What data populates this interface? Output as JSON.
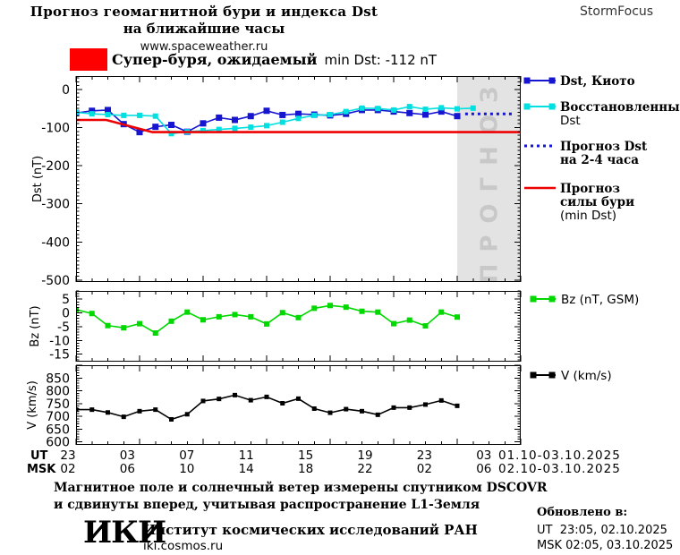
{
  "header": {
    "title_line1": "Прогноз геомагнитной бури и индекса Dst",
    "title_line2": "на ближайшие часы",
    "website": "www.spaceweather.ru",
    "brand": "StormFocus"
  },
  "alert": {
    "label_ru": "Супер-буря, ожидаемый",
    "label_value": "min Dst: -112 nT",
    "color": "#ff0000"
  },
  "xaxis": {
    "ut_label": "UT",
    "msk_label": "MSK",
    "ut_hours": [
      "23",
      "03",
      "07",
      "11",
      "15",
      "19",
      "23",
      "03"
    ],
    "msk_hours": [
      "02",
      "06",
      "10",
      "14",
      "18",
      "22",
      "02",
      "06"
    ],
    "ut_date": "01.10-03.10.2025",
    "msk_date": "02.10-03.10.2025"
  },
  "chart_data": [
    {
      "id": "dst",
      "type": "line",
      "ylabel": "Dst (nT)",
      "yticks": [
        0,
        -100,
        -200,
        -300,
        -400,
        -500
      ],
      "ylim": [
        35,
        -505
      ],
      "xlim_hours": [
        0,
        28
      ],
      "forecast_region": {
        "from_hour": 24,
        "to_hour": 28,
        "label": "ПРОГНОЗ",
        "color": "#e3e3e3",
        "label_color": "#c8c8c8"
      },
      "series": [
        {
          "id": "dst-kyoto",
          "name": "Dst, Киото",
          "color": "#1616d1",
          "marker": true,
          "marker_size": 7,
          "x_start_hour": 0,
          "x_step": 1,
          "values": [
            -62,
            -56,
            -54,
            -91,
            -112,
            -98,
            -93,
            -111,
            -89,
            -74,
            -80,
            -70,
            -56,
            -67,
            -64,
            -66,
            -68,
            -64,
            -54,
            -54,
            -58,
            -62,
            -66,
            -58,
            -70
          ]
        },
        {
          "id": "dst-restored",
          "name": "Восстановленный Dst",
          "color": "#00e0e0",
          "marker": true,
          "marker_size": 6,
          "x_start_hour": 0,
          "x_step": 1,
          "values": [
            -60,
            -64,
            -66,
            -68,
            -68,
            -70,
            -116,
            -111,
            -108,
            -105,
            -102,
            -99,
            -95,
            -86,
            -76,
            -68,
            -66,
            -58,
            -49,
            -50,
            -54,
            -45,
            -52,
            -48,
            -51,
            -49
          ]
        },
        {
          "id": "dst-forecast",
          "name": "Прогноз Dst на 2-4 часа",
          "color": "#1616d1",
          "style": "dotted",
          "points": [
            [
              24.5,
              -64
            ],
            [
              27.6,
              -64
            ]
          ]
        },
        {
          "id": "storm-min-forecast",
          "name": "Прогноз силы бури (min Dst)",
          "color": "#ee0000",
          "width": 2.6,
          "points": [
            [
              0,
              -80
            ],
            [
              1.9,
              -80
            ],
            [
              4.8,
              -112
            ],
            [
              28,
              -112
            ]
          ]
        }
      ]
    },
    {
      "id": "bz",
      "type": "line",
      "ylabel": "Bz (nT)",
      "yticks": [
        5,
        0,
        -5,
        -10,
        -15
      ],
      "ylim": [
        8,
        -17.7
      ],
      "xlim_hours": [
        0,
        28
      ],
      "series": [
        {
          "id": "bz",
          "name": "Bz (nT, GSM)",
          "color": "#00d800",
          "marker": true,
          "marker_size": 6,
          "x_start_hour": 0,
          "x_step": 1,
          "values": [
            1.2,
            -0.2,
            -4.6,
            -5.4,
            -3.9,
            -7.3,
            -3.0,
            0.3,
            -2.5,
            -1.4,
            -0.6,
            -1.4,
            -4.0,
            0.1,
            -1.7,
            1.7,
            2.7,
            2.1,
            0.6,
            0.3,
            -3.9,
            -2.6,
            -4.7,
            0.3,
            -1.5
          ]
        }
      ]
    },
    {
      "id": "v",
      "type": "line",
      "ylabel": "V (km/s)",
      "yticks": [
        850,
        800,
        750,
        700,
        650,
        600
      ],
      "ylim": [
        900,
        588
      ],
      "xlim_hours": [
        0,
        28
      ],
      "series": [
        {
          "id": "v",
          "name": "V (km/s)",
          "color": "#000000",
          "marker": true,
          "marker_size": 5,
          "x_start_hour": 0,
          "x_step": 1,
          "values": [
            726,
            726,
            715,
            698,
            720,
            726,
            688,
            708,
            760,
            768,
            783,
            763,
            776,
            751,
            769,
            730,
            714,
            728,
            720,
            706,
            734,
            734,
            746,
            762,
            741
          ]
        }
      ]
    }
  ],
  "legend": {
    "dst": [
      {
        "lines": [
          "Dst, Киото"
        ],
        "color": "#1616d1",
        "style": "solid",
        "marker": true
      },
      {
        "lines": [
          "Восстановленный",
          "Dst"
        ],
        "color": "#00e0e0",
        "style": "solid",
        "marker": true
      },
      {
        "lines": [
          "Прогноз Dst",
          "на 2-4 часа"
        ],
        "color": "#1616d1",
        "style": "dotted",
        "marker": false
      },
      {
        "lines": [
          "Прогноз",
          "силы бури",
          "(min Dst)"
        ],
        "color": "#ee0000",
        "style": "solid",
        "marker": false,
        "thick": true
      }
    ],
    "bz": [
      {
        "lines": [
          "Bz (nT, GSM)"
        ],
        "color": "#00d800",
        "style": "solid",
        "marker": true
      }
    ],
    "v": [
      {
        "lines": [
          "V (km/s)"
        ],
        "color": "#000000",
        "style": "solid",
        "marker": true
      }
    ]
  },
  "footer": {
    "note_line1": "Магнитное поле и солнечный ветер измерены спутником DSCOVR",
    "note_line2": "и сдвинуты вперед, учитывая распространение L1-Земля",
    "logo": "ИКИ",
    "institute": "Институт космических исследований РАН",
    "institute_site": "iki.cosmos.ru",
    "updated_label": "Обновлено в:",
    "updated_ut": "UT  23:05, 02.10.2025",
    "updated_msk": "MSK 02:05, 03.10.2025"
  }
}
